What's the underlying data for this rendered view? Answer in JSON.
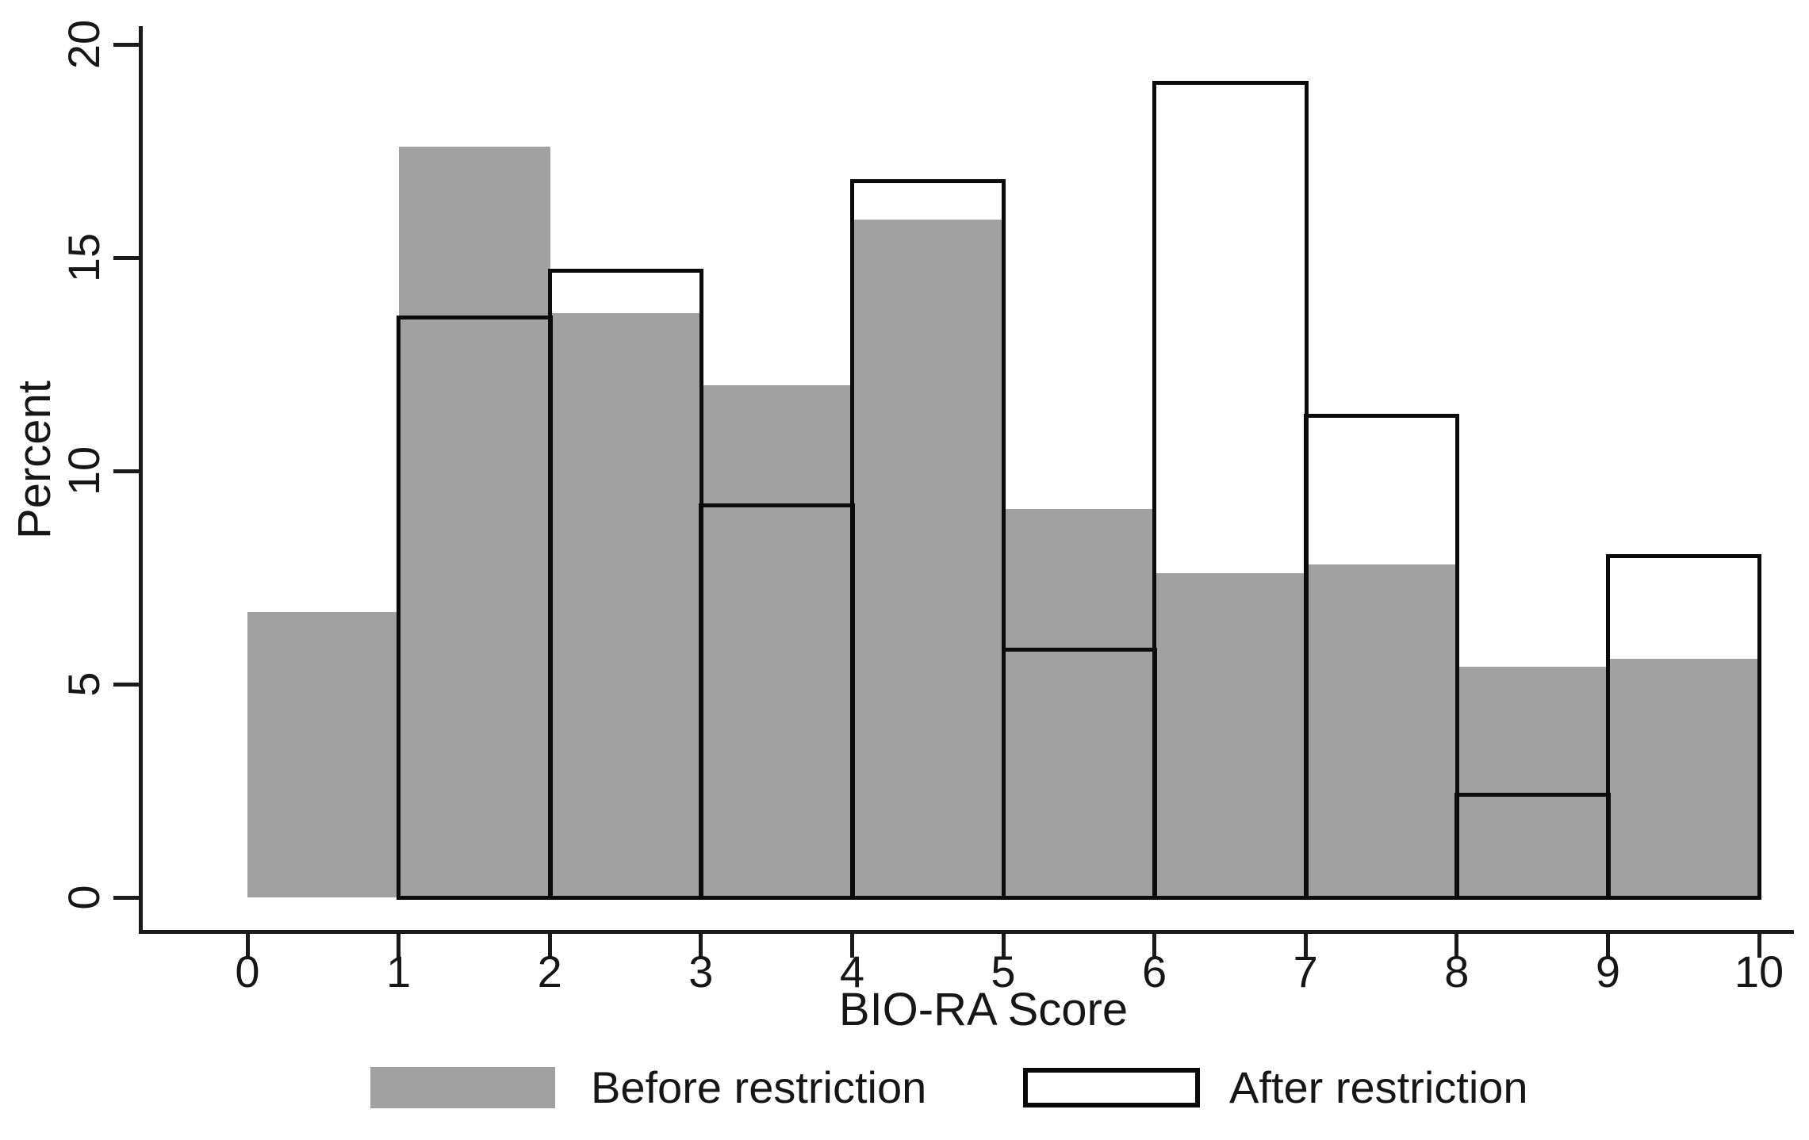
{
  "chart_data": {
    "type": "bar",
    "subtype": "overlaid-histogram",
    "title": "",
    "xlabel": "BIO-RA Score",
    "ylabel": "Percent",
    "xlim": [
      0,
      10
    ],
    "ylim": [
      0,
      20
    ],
    "bin_width": 1,
    "grid": false,
    "x_ticks": [
      "0",
      "1",
      "2",
      "3",
      "4",
      "5",
      "6",
      "7",
      "8",
      "9",
      "10"
    ],
    "y_ticks": [
      "0",
      "5",
      "10",
      "15",
      "20"
    ],
    "bin_starts": [
      0,
      1,
      2,
      3,
      4,
      5,
      6,
      7,
      8,
      9
    ],
    "series": [
      {
        "name": "Before restriction",
        "style": "filled",
        "fill_color": "#a1a1a1",
        "values": [
          6.7,
          17.6,
          13.7,
          12.0,
          15.9,
          9.1,
          7.6,
          7.8,
          5.4,
          5.6
        ]
      },
      {
        "name": "After restriction",
        "style": "hollow-outline",
        "outline_color": "#0b0b0b",
        "values": [
          null,
          13.6,
          14.7,
          9.2,
          16.8,
          5.8,
          19.1,
          11.3,
          2.4,
          8.0
        ]
      }
    ],
    "legend": {
      "position": "bottom-center",
      "entries": [
        "Before restriction",
        "After restriction"
      ]
    }
  }
}
